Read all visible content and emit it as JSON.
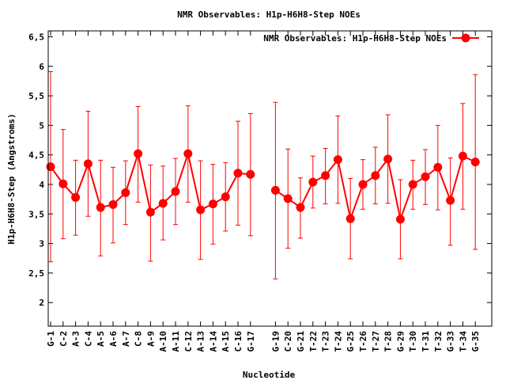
{
  "chart_data": {
    "type": "line",
    "title": "NMR Observables: H1p-H6H8-Step NOEs",
    "xlabel": "Nucleotide",
    "ylabel": "H1p-H6H8-Step (Angstroms)",
    "ylim": [
      1.6,
      6.6
    ],
    "yticks": [
      "2",
      "2.5",
      "3",
      "3.5",
      "4",
      "4.5",
      "5",
      "5.5",
      "6",
      "6.5"
    ],
    "legend_position": "top-right",
    "grid": false,
    "series": [
      {
        "name": "NMR Observables: H1p-H6H8-Step NOEs",
        "color": "#ff0000",
        "segments": [
          {
            "categories": [
              "G-1",
              "C-2",
              "A-3",
              "C-4",
              "A-5",
              "A-6",
              "A-7",
              "C-8",
              "A-9",
              "A-10",
              "A-11",
              "C-12",
              "A-13",
              "A-14",
              "A-15",
              "C-16",
              "G-17"
            ],
            "values": [
              4.3,
              4.01,
              3.78,
              4.35,
              3.61,
              3.66,
              3.86,
              4.52,
              3.53,
              3.68,
              3.88,
              4.52,
              3.57,
              3.67,
              3.79,
              4.19,
              4.17
            ],
            "error_low": [
              2.69,
              3.08,
              3.14,
              3.46,
              2.79,
              3.01,
              3.32,
              3.7,
              2.7,
              3.06,
              3.32,
              3.7,
              2.73,
              2.99,
              3.21,
              3.31,
              3.13
            ],
            "error_high": [
              5.91,
              4.93,
              4.41,
              5.24,
              4.41,
              4.29,
              4.4,
              5.32,
              4.33,
              4.31,
              4.44,
              5.33,
              4.4,
              4.34,
              4.37,
              5.07,
              5.2
            ]
          },
          {
            "categories": [
              "G-19",
              "C-20",
              "G-21",
              "T-22",
              "T-23",
              "T-24",
              "G-25",
              "T-26",
              "T-27",
              "T-28",
              "G-29",
              "T-30",
              "T-31",
              "T-32",
              "G-33",
              "T-34",
              "G-35"
            ],
            "values": [
              3.9,
              3.76,
              3.61,
              4.04,
              4.15,
              4.42,
              3.42,
              4.0,
              4.15,
              4.43,
              3.41,
              4.0,
              4.13,
              4.29,
              3.73,
              4.48,
              4.38
            ],
            "error_low": [
              2.4,
              2.92,
              3.09,
              3.6,
              3.67,
              3.68,
              2.74,
              3.58,
              3.67,
              3.68,
              2.74,
              3.58,
              3.66,
              3.57,
              2.97,
              3.58,
              2.9
            ],
            "error_high": [
              5.39,
              4.6,
              4.11,
              4.48,
              4.61,
              5.16,
              4.1,
              4.42,
              4.63,
              5.18,
              4.08,
              4.41,
              4.59,
              5.0,
              4.45,
              5.37,
              5.86
            ]
          }
        ]
      }
    ]
  }
}
